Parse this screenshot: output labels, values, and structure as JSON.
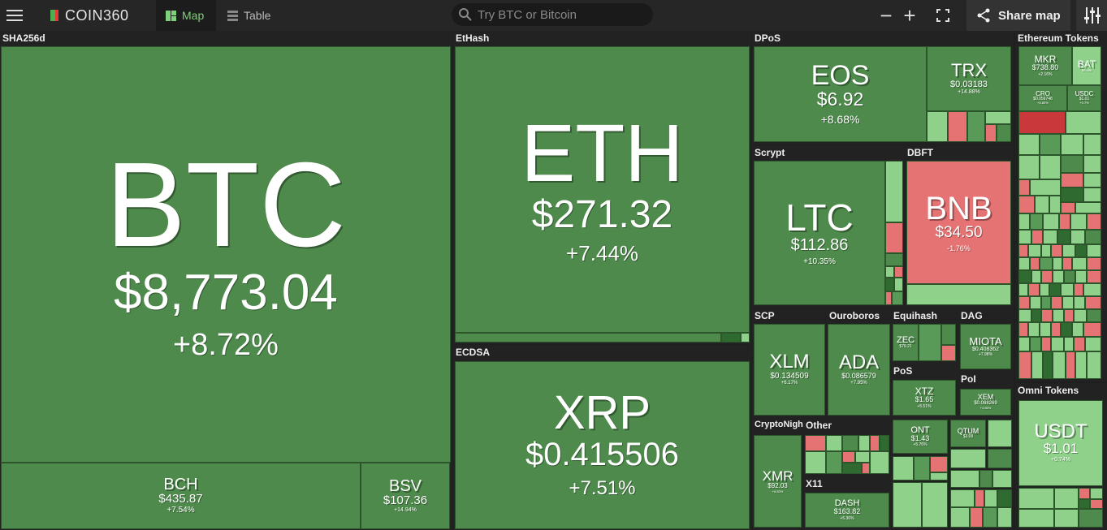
{
  "header": {
    "logo": "COIN360",
    "tabs": [
      {
        "label": "Map"
      },
      {
        "label": "Table"
      }
    ],
    "search_placeholder": "Try BTC or Bitcoin",
    "zoom_out": "−",
    "zoom_in": "+",
    "share_label": "Share map"
  },
  "groups": {
    "sha256d": "SHA256d",
    "ethash": "EtHash",
    "ecdsa": "ECDSA",
    "dpos": "DPoS",
    "scrypt": "Scrypt",
    "dbft": "DBFT",
    "scp": "SCP",
    "ouroboros": "Ouroboros",
    "equihash": "Equihash",
    "dag": "DAG",
    "pos": "PoS",
    "poi": "PoI",
    "cryptonight": "CryptoNight",
    "other": "Other",
    "x11": "X11",
    "eth_tokens": "Ethereum Tokens",
    "omni": "Omni Tokens"
  },
  "coins": {
    "btc": {
      "symbol": "BTC",
      "price": "$8,773.04",
      "change": "+8.72%"
    },
    "bch": {
      "symbol": "BCH",
      "price": "$435.87",
      "change": "+7.54%"
    },
    "bsv": {
      "symbol": "BSV",
      "price": "$107.36",
      "change": "+14.94%"
    },
    "eth": {
      "symbol": "ETH",
      "price": "$271.32",
      "change": "+7.44%"
    },
    "xrp": {
      "symbol": "XRP",
      "price": "$0.415506",
      "change": "+7.51%"
    },
    "eos": {
      "symbol": "EOS",
      "price": "$6.92",
      "change": "+8.68%"
    },
    "trx": {
      "symbol": "TRX",
      "price": "$0.03183",
      "change": "+14.88%"
    },
    "ltc": {
      "symbol": "LTC",
      "price": "$112.86",
      "change": "+10.35%"
    },
    "bnb": {
      "symbol": "BNB",
      "price": "$34.50",
      "change": "-1.76%"
    },
    "xlm": {
      "symbol": "XLM",
      "price": "$0.134509",
      "change": "+6.17%"
    },
    "ada": {
      "symbol": "ADA",
      "price": "$0.086579",
      "change": "+7.95%"
    },
    "zec": {
      "symbol": "ZEC",
      "price": "$79.21",
      "change": ""
    },
    "miota": {
      "symbol": "MIOTA",
      "price": "$0.408362",
      "change": "+7.98%"
    },
    "xtz": {
      "symbol": "XTZ",
      "price": "$1.65",
      "change": "+5.51%"
    },
    "xem": {
      "symbol": "XEM",
      "price": "$0.088269",
      "change": "+4.66%"
    },
    "xmr": {
      "symbol": "XMR",
      "price": "$92.03",
      "change": "+6.83%"
    },
    "ont": {
      "symbol": "ONT",
      "price": "$1.43",
      "change": "+5.76%"
    },
    "qtum": {
      "symbol": "QTUM",
      "price": "$3.09",
      "change": ""
    },
    "dash": {
      "symbol": "DASH",
      "price": "$163.82",
      "change": "+5.36%"
    },
    "mkr": {
      "symbol": "MKR",
      "price": "$738.80",
      "change": "+2.16%"
    },
    "bat": {
      "symbol": "BAT",
      "price": "$0.288",
      "change": ""
    },
    "cro": {
      "symbol": "CRO",
      "price": "$0.059748",
      "change": "+6.83%"
    },
    "usdc": {
      "symbol": "USDC",
      "price": "$1.01",
      "change": "+0.7%"
    },
    "usdt": {
      "symbol": "USDT",
      "price": "$1.01",
      "change": "+0.74%"
    }
  }
}
